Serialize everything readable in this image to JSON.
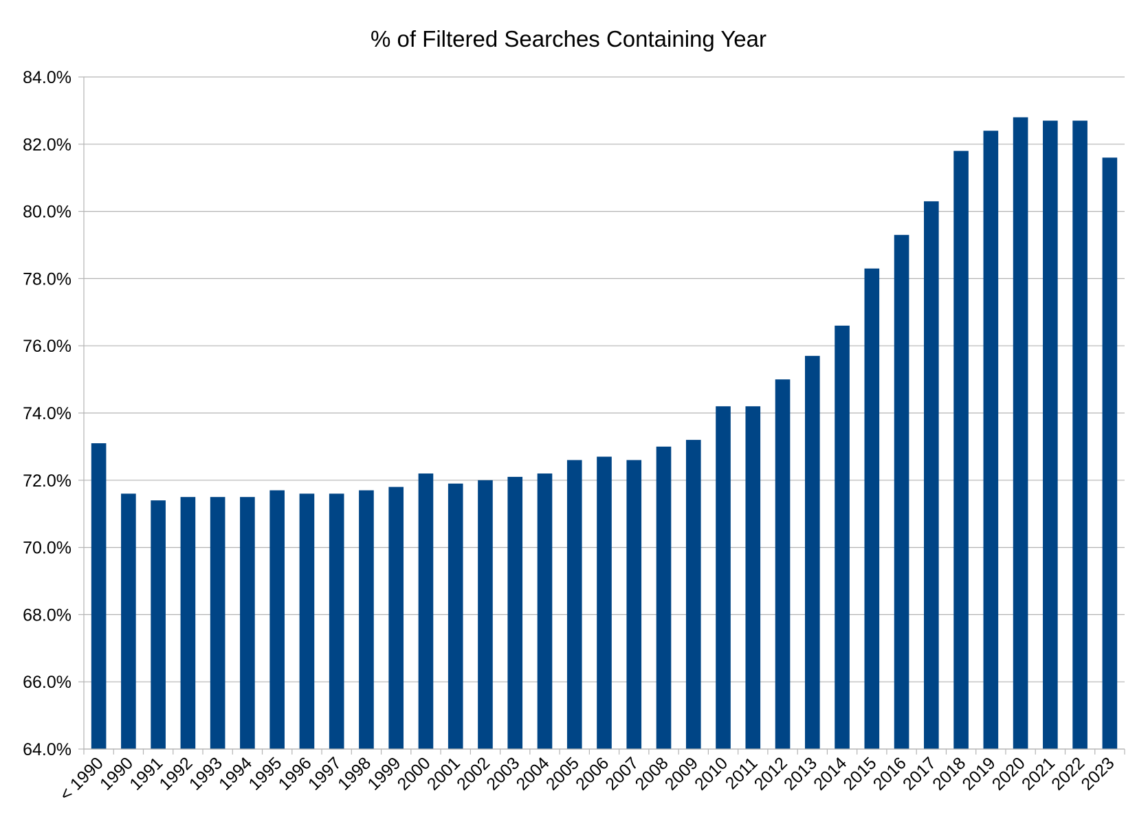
{
  "chart_data": {
    "type": "bar",
    "title": "% of Filtered Searches Containing Year",
    "xlabel": "",
    "ylabel": "",
    "ylim": [
      64.0,
      84.0
    ],
    "yticks": [
      "64.0%",
      "66.0%",
      "68.0%",
      "70.0%",
      "72.0%",
      "74.0%",
      "76.0%",
      "78.0%",
      "80.0%",
      "82.0%",
      "84.0%"
    ],
    "ytick_values": [
      64,
      66,
      68,
      70,
      72,
      74,
      76,
      78,
      80,
      82,
      84
    ],
    "grid": true,
    "legend": "none",
    "bar_color": "#004586",
    "grid_color": "#b3b3b3",
    "axis_color": "#b3b3b3",
    "categories": [
      "< 1990",
      "1990",
      "1991",
      "1992",
      "1993",
      "1994",
      "1995",
      "1996",
      "1997",
      "1998",
      "1999",
      "2000",
      "2001",
      "2002",
      "2003",
      "2004",
      "2005",
      "2006",
      "2007",
      "2008",
      "2009",
      "2010",
      "2011",
      "2012",
      "2013",
      "2014",
      "2015",
      "2016",
      "2017",
      "2018",
      "2019",
      "2020",
      "2021",
      "2022",
      "2023"
    ],
    "values": [
      73.1,
      71.6,
      71.4,
      71.5,
      71.5,
      71.5,
      71.7,
      71.6,
      71.6,
      71.7,
      71.8,
      72.2,
      71.9,
      72.0,
      72.1,
      72.2,
      72.6,
      72.7,
      72.6,
      73.0,
      73.2,
      74.2,
      74.2,
      75.0,
      75.7,
      76.6,
      78.3,
      79.3,
      80.3,
      81.8,
      82.4,
      82.8,
      82.7,
      82.7,
      81.6
    ]
  }
}
